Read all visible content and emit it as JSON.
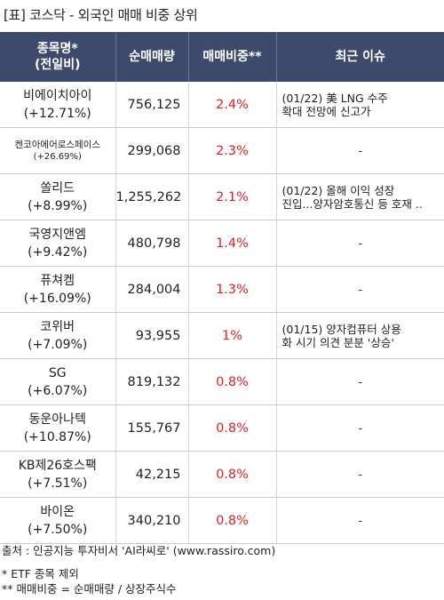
{
  "title": "[표] 코스닥 - 외국인 매매 비중 상위",
  "headers": {
    "name": "종목명*\n(전일비)",
    "volume": "순매매량",
    "ratio": "매매비중**",
    "issue": "최근 이슈"
  },
  "rows": [
    {
      "name": "비에이치아이",
      "change": "(+12.71%)",
      "volume": "756,125",
      "ratio": "2.4%",
      "issue": "(01/22) 美 LNG 수주\n 확대 전망에 신고가"
    },
    {
      "name": "켄코아에어로스페이스",
      "change": "(+26.69%)",
      "volume": "299,068",
      "ratio": "2.3%",
      "issue": "-"
    },
    {
      "name": "쏠리드",
      "change": "(+8.99%)",
      "volume": "1,255,262",
      "ratio": "2.1%",
      "issue": "(01/22) 올해 이익 성장\n 진입...양자암호통신 등 호재 .."
    },
    {
      "name": "국영지앤엠",
      "change": "(+9.42%)",
      "volume": "480,798",
      "ratio": "1.4%",
      "issue": "-"
    },
    {
      "name": "퓨쳐켐",
      "change": "(+16.09%)",
      "volume": "284,004",
      "ratio": "1.3%",
      "issue": "-"
    },
    {
      "name": "코위버",
      "change": "(+7.09%)",
      "volume": "93,955",
      "ratio": "1%",
      "issue": "(01/15) 양자컴퓨터 상용\n화 시기 의견 분분 '상승'"
    },
    {
      "name": "SG",
      "change": "(+6.07%)",
      "volume": "819,132",
      "ratio": "0.8%",
      "issue": "-"
    },
    {
      "name": "동운아나텍",
      "change": "(+10.87%)",
      "volume": "155,767",
      "ratio": "0.8%",
      "issue": "-"
    },
    {
      "name": "KB제26호스팩",
      "change": "(+7.51%)",
      "volume": "42,215",
      "ratio": "0.8%",
      "issue": "-"
    },
    {
      "name": "바이온",
      "change": "(+7.50%)",
      "volume": "340,210",
      "ratio": "0.8%",
      "issue": "-"
    }
  ],
  "footer": {
    "source": "출처 : 인공지능 투자비서 'AI라씨로' (www.rassiro.com)",
    "note1": "* ETF 종목 제외",
    "note2": "** 매매비중 = 순매매량 / 상장주식수"
  },
  "colors": {
    "header_bg": "#3d4a6b",
    "ratio_red": "#e02020"
  }
}
